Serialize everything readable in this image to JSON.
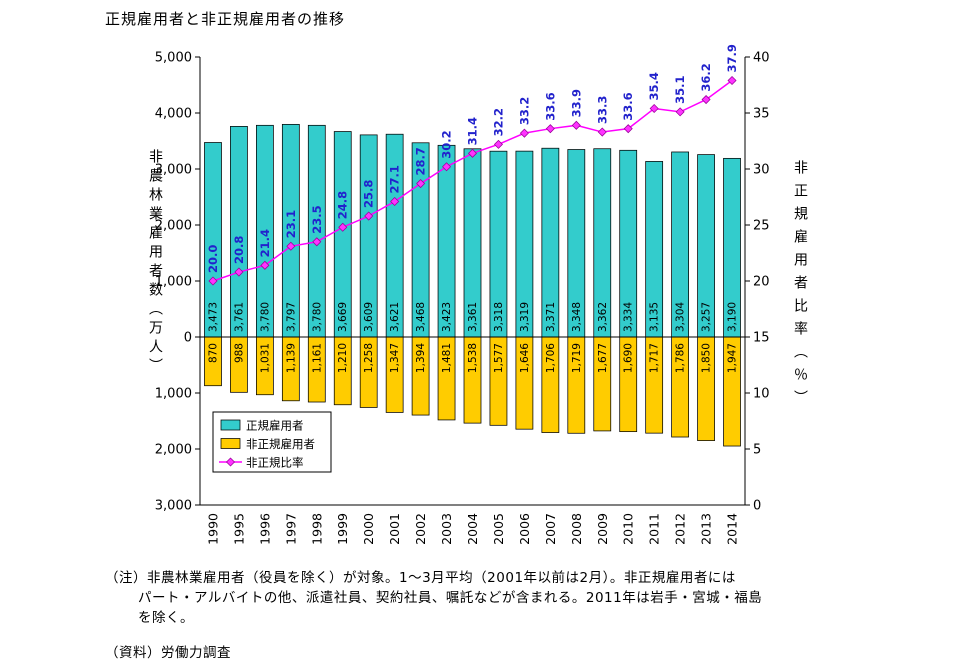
{
  "notes": {
    "line1": "（注）非農林業雇用者（役員を除く）が対象。1～3月平均（2001年以前は2月）。非正規雇用者には",
    "line2": "パート・アルバイトの他、派遣社員、契約社員、嘱託などが含まれる。2011年は岩手・宮城・福島",
    "line3": "を除く。",
    "source": "（資料）労働力調査"
  },
  "chart_data": {
    "type": "bar",
    "subtype": "combo-bar-line",
    "title": "正規雇用者と非正規雇用者の推移",
    "categories": [
      "1990",
      "1995",
      "1996",
      "1997",
      "1998",
      "1999",
      "2000",
      "2001",
      "2002",
      "2003",
      "2004",
      "2005",
      "2006",
      "2007",
      "2008",
      "2009",
      "2010",
      "2011",
      "2012",
      "2013",
      "2014"
    ],
    "series": [
      {
        "name": "正規雇用者",
        "type": "bar",
        "direction": "up",
        "color": "#33CCCC",
        "values": [
          3473,
          3761,
          3780,
          3797,
          3780,
          3669,
          3609,
          3621,
          3468,
          3423,
          3361,
          3318,
          3319,
          3371,
          3348,
          3362,
          3334,
          3135,
          3304,
          3257,
          3190
        ]
      },
      {
        "name": "非正規雇用者",
        "type": "bar",
        "direction": "down",
        "color": "#FFCC00",
        "values": [
          870,
          988,
          1031,
          1139,
          1161,
          1210,
          1258,
          1347,
          1394,
          1481,
          1538,
          1577,
          1646,
          1706,
          1719,
          1677,
          1690,
          1717,
          1786,
          1850,
          1947
        ]
      },
      {
        "name": "非正規比率",
        "type": "line",
        "axis": "right",
        "color": "#FF00FF",
        "marker": "diamond",
        "label_color": "#2222CC",
        "values": [
          20.0,
          20.8,
          21.4,
          23.1,
          23.5,
          24.8,
          25.8,
          27.1,
          28.7,
          30.2,
          31.4,
          32.2,
          33.2,
          33.6,
          33.9,
          33.3,
          33.6,
          35.4,
          35.1,
          36.2,
          37.9
        ]
      }
    ],
    "left_axis": {
      "title": "非農林業雇用者数（万人）",
      "max": 5000,
      "min": -3000,
      "ticks": [
        5000,
        4000,
        3000,
        2000,
        1000,
        0,
        -1000,
        -2000,
        -3000
      ]
    },
    "right_axis": {
      "title": "非正規雇用者比率（％）",
      "max": 40,
      "min": 0,
      "ticks": [
        40,
        35,
        30,
        25,
        20,
        15,
        10,
        5,
        0
      ]
    },
    "legend": {
      "position": "inside-bottom-left",
      "items": [
        "正規雇用者",
        "非正規雇用者",
        "非正規比率"
      ]
    },
    "grid": false
  }
}
